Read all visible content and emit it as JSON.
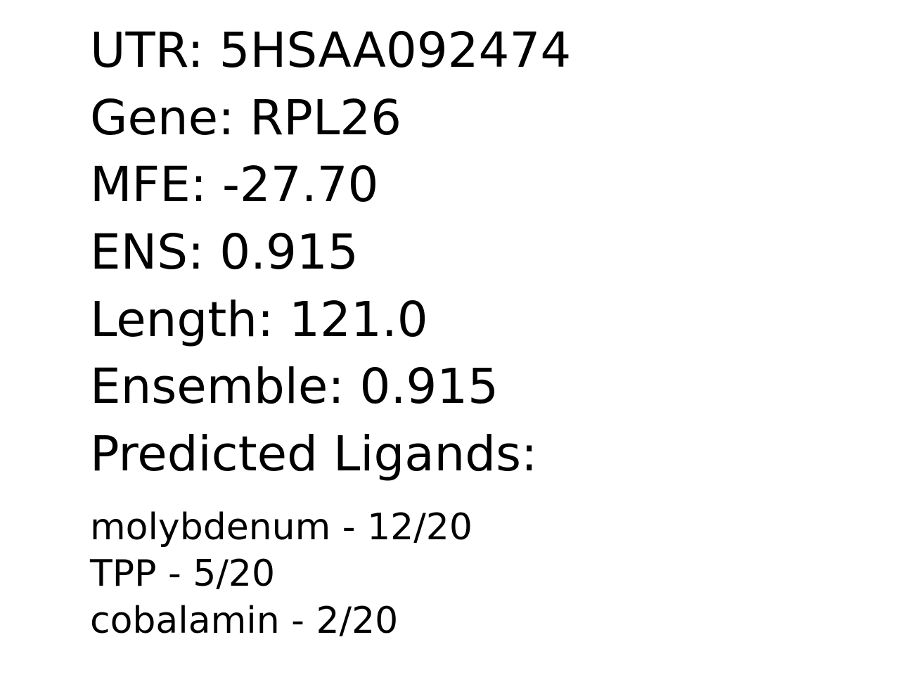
{
  "fields": [
    {
      "text": "UTR: 5HSAA092474"
    },
    {
      "text": "Gene: RPL26"
    },
    {
      "text": "MFE: -27.70"
    },
    {
      "text": "ENS: 0.915"
    },
    {
      "text": "Length: 121.0"
    },
    {
      "text": "Ensemble: 0.915"
    },
    {
      "text": "Predicted Ligands:"
    }
  ],
  "ligands": [
    {
      "text": "molybdenum - 12/20"
    },
    {
      "text": "TPP - 5/20"
    },
    {
      "text": "cobalamin - 2/20"
    }
  ]
}
